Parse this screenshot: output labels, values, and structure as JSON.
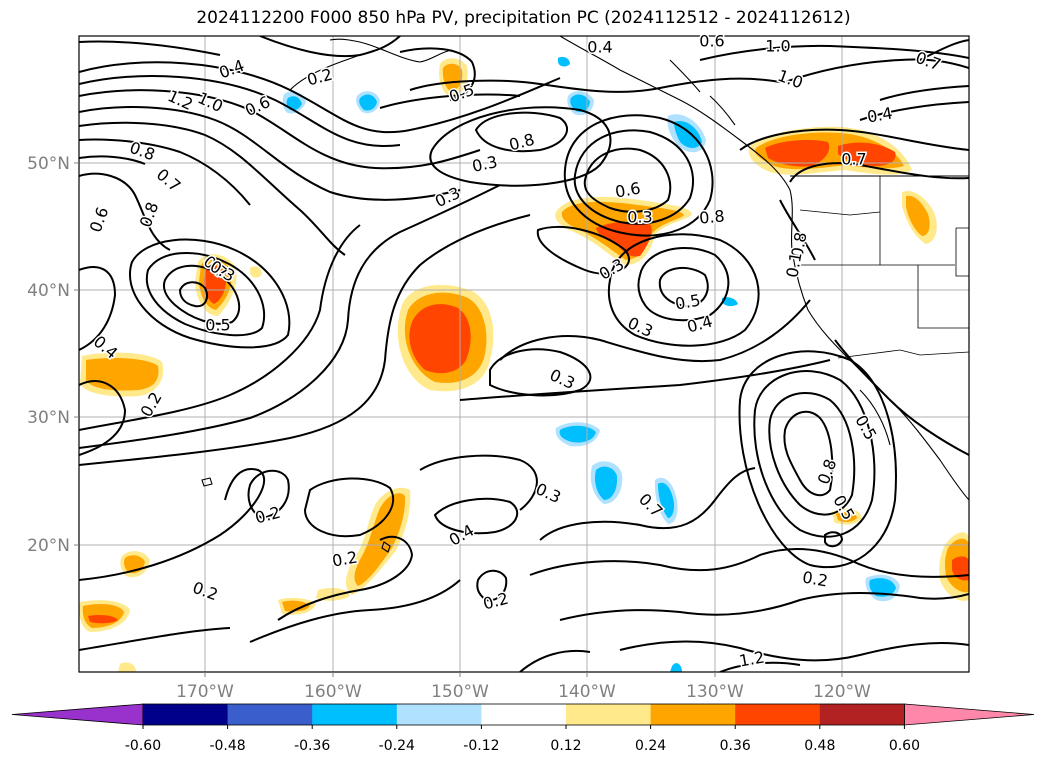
{
  "title": "2024112200 F000 850 hPa PV, precipitation PC (2024112512 - 2024112612)",
  "lat_labels": [
    "50°N",
    "40°N",
    "30°N",
    "20°N"
  ],
  "lon_labels": [
    "170°W",
    "160°W",
    "150°W",
    "140°W",
    "130°W",
    "120°W"
  ],
  "contour_labels": [
    "0.4",
    "0.2",
    "0.5",
    "1.2",
    "1.0",
    "0.6",
    "0.8",
    "0.7",
    "0.6",
    "0.8",
    "0.7",
    "0.5",
    "0.8",
    "0.3",
    "0.3",
    "0.3",
    "0.6",
    "0.5",
    "0.4",
    "0.3",
    "0.8",
    "0.4",
    "0.3",
    "0.2",
    "0.2",
    "0.2",
    "0.2",
    "0.4",
    "0.3",
    "0.7",
    "0.8",
    "0.5",
    "0.2",
    "0.2",
    "1.2",
    "1.0",
    "1.0",
    "0.7",
    "0.4",
    "0.7",
    "0.6",
    "0.4",
    "0.5",
    "0.8",
    "0.1",
    "0.3",
    "0.3"
  ],
  "colorbar": {
    "ticks": [
      "-0.60",
      "-0.48",
      "-0.36",
      "-0.24",
      "-0.12",
      "0.12",
      "0.24",
      "0.36",
      "0.48",
      "0.60"
    ],
    "colors": [
      "#9932cc",
      "#00008b",
      "#3a5fcd",
      "#00bfff",
      "#b0e2ff",
      "#ffffff",
      "#ffe98a",
      "#ffa500",
      "#ff4500",
      "#b22222",
      "#ff88aa"
    ]
  }
}
